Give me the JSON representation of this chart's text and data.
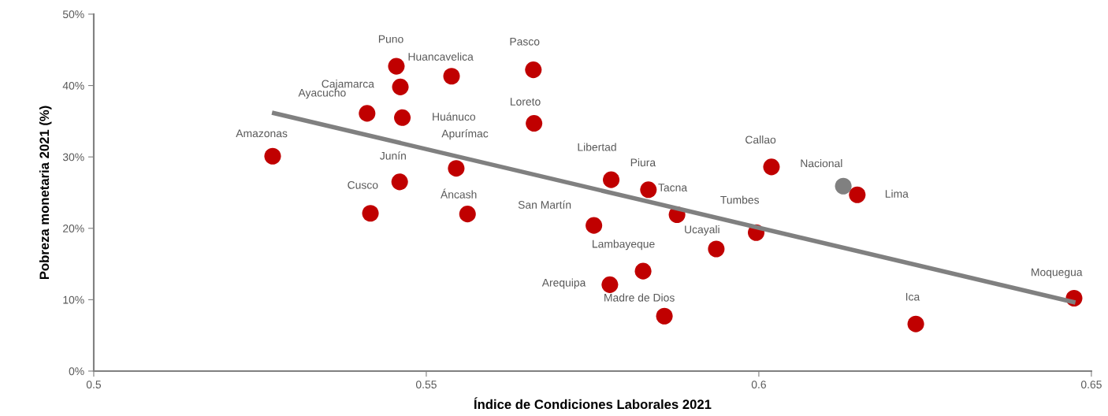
{
  "chart_data": {
    "type": "scatter",
    "xlabel": "Índice de Condiciones Laborales 2021",
    "ylabel": "Pobreza monetaria 2021 (%)",
    "xlim": [
      0.5,
      0.65
    ],
    "xticks": [
      0.5,
      0.55,
      0.6,
      0.65
    ],
    "ylim": [
      0,
      50
    ],
    "yticks": [
      {
        "value": 0,
        "label": "0%"
      },
      {
        "value": 10,
        "label": "10%"
      },
      {
        "value": 20,
        "label": "20%"
      },
      {
        "value": 30,
        "label": "30%"
      },
      {
        "value": 40,
        "label": "40%"
      },
      {
        "value": 50,
        "label": "50%"
      }
    ],
    "grid": false,
    "legend": false,
    "marker": "circle",
    "series": [
      {
        "type": "line",
        "marker": "none",
        "color": "#808080",
        "x": [
          0.5268,
          0.6476
        ],
        "values": [
          36.2,
          9.6
        ]
      },
      {
        "color": "#c00000",
        "x": [
          0.5269,
          0.5416,
          0.5411,
          0.5461,
          0.5455,
          0.5464,
          0.546,
          0.5538,
          0.5545,
          0.5562,
          0.5661,
          0.5662,
          0.5778,
          0.5752,
          0.5776,
          0.5826,
          0.5834,
          0.5858,
          0.5877,
          0.5936,
          0.5996,
          0.6019,
          0.6148,
          0.6236,
          0.6474
        ],
        "values": [
          30.1,
          22.1,
          36.1,
          39.8,
          42.7,
          35.5,
          26.5,
          41.3,
          28.4,
          22.0,
          42.2,
          34.7,
          26.8,
          20.4,
          12.1,
          14.0,
          25.4,
          7.7,
          21.9,
          17.1,
          19.4,
          28.6,
          24.7,
          6.6,
          10.2
        ]
      },
      {
        "type": "scatter",
        "color": "#808080",
        "x": [
          0.6127
        ],
        "values": [
          25.9
        ]
      }
    ],
    "annotations": [
      {
        "text": "Amazonas",
        "x": 0.5269,
        "y": 30.1
      },
      {
        "text": "Cusco",
        "x": 0.5416,
        "y": 22.1
      },
      {
        "text": "Ayacucho",
        "x": 0.5411,
        "y": 36.1
      },
      {
        "text": "Cajamarca",
        "x": 0.5461,
        "y": 39.8
      },
      {
        "text": "Puno",
        "x": 0.5455,
        "y": 42.7
      },
      {
        "text": "Huánuco",
        "x": 0.5464,
        "y": 35.5
      },
      {
        "text": "Junín",
        "x": 0.546,
        "y": 26.5
      },
      {
        "text": "Huancavelica",
        "x": 0.5538,
        "y": 41.3
      },
      {
        "text": "Apurímac",
        "x": 0.5545,
        "y": 28.4
      },
      {
        "text": "Áncash",
        "x": 0.5562,
        "y": 22.0
      },
      {
        "text": "Pasco",
        "x": 0.5661,
        "y": 42.2
      },
      {
        "text": "Loreto",
        "x": 0.5662,
        "y": 34.7
      },
      {
        "text": "Libertad",
        "x": 0.5778,
        "y": 26.8
      },
      {
        "text": "San Martín",
        "x": 0.5752,
        "y": 20.4
      },
      {
        "text": "Arequipa",
        "x": 0.5776,
        "y": 12.1
      },
      {
        "text": "Lambayeque",
        "x": 0.5826,
        "y": 14.0
      },
      {
        "text": "Piura",
        "x": 0.5834,
        "y": 25.4
      },
      {
        "text": "Madre de Dios",
        "x": 0.5858,
        "y": 7.7
      },
      {
        "text": "Tacna",
        "x": 0.5877,
        "y": 21.9
      },
      {
        "text": "Ucayali",
        "x": 0.5936,
        "y": 17.1
      },
      {
        "text": "Tumbes",
        "x": 0.5996,
        "y": 19.4
      },
      {
        "text": "Callao",
        "x": 0.6019,
        "y": 28.6
      },
      {
        "text": "Lima",
        "x": 0.6148,
        "y": 24.7
      },
      {
        "text": "Ica",
        "x": 0.6236,
        "y": 6.6
      },
      {
        "text": "Moquegua",
        "x": 0.6474,
        "y": 10.2
      },
      {
        "text": "Nacional",
        "x": 0.6127,
        "y": 25.9
      }
    ]
  }
}
